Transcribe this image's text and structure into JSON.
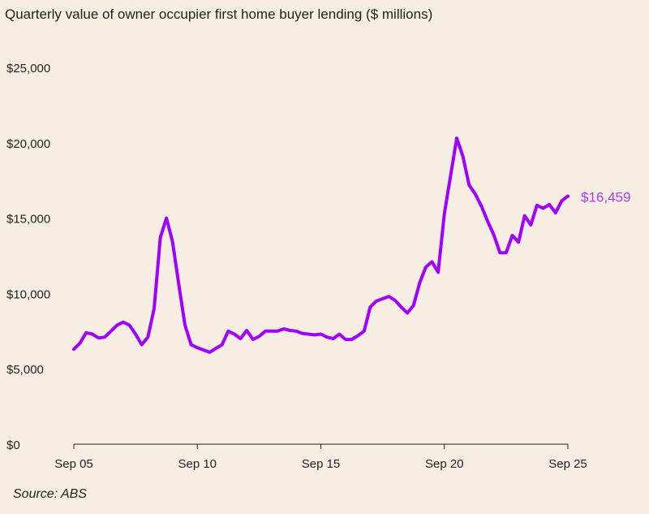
{
  "chart_data": {
    "type": "line",
    "title": "Quarterly value of owner occupier first home buyer lending ($ millions)",
    "source": "Source: ABS",
    "x_start": "Sep 05",
    "x_end": "Sep 25",
    "x_frequency": "quarterly",
    "x_tick_labels": [
      "Sep 05",
      "Sep 10",
      "Sep 15",
      "Sep 20",
      "Sep 25"
    ],
    "y_tick_labels": [
      "$0",
      "$5,000",
      "$10,000",
      "$15,000",
      "$20,000",
      "$25,000"
    ],
    "y_ticks": [
      0,
      5000,
      10000,
      15000,
      20000,
      25000
    ],
    "ylim": [
      0,
      25000
    ],
    "grid": false,
    "line_color": "#a100ff",
    "end_label": "$16,459",
    "end_label_color": "#b23cf2",
    "values": [
      6300,
      6700,
      7400,
      7300,
      7050,
      7100,
      7500,
      7900,
      8100,
      7900,
      7300,
      6600,
      7100,
      9000,
      13700,
      15000,
      13400,
      10600,
      7900,
      6600,
      6400,
      6250,
      6100,
      6350,
      6600,
      7500,
      7300,
      7000,
      7550,
      6950,
      7150,
      7500,
      7500,
      7500,
      7650,
      7550,
      7500,
      7350,
      7300,
      7250,
      7300,
      7100,
      7000,
      7300,
      6950,
      6950,
      7200,
      7500,
      9100,
      9500,
      9650,
      9800,
      9550,
      9100,
      8700,
      9200,
      10700,
      11750,
      12100,
      11400,
      15300,
      17800,
      20300,
      19100,
      17200,
      16600,
      15800,
      14800,
      13900,
      12700,
      12700,
      13850,
      13400,
      15150,
      14550,
      15850,
      15650,
      15900,
      15350,
      16150,
      16459
    ]
  }
}
